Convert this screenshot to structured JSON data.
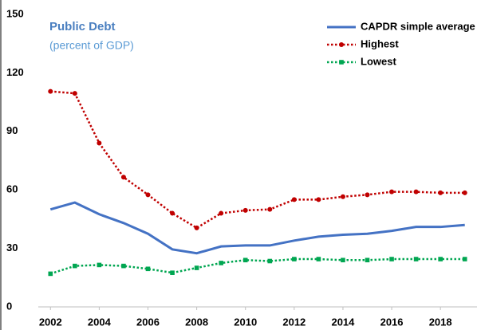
{
  "chart_data": {
    "type": "line",
    "title": "Public Debt",
    "subtitle": "(percent of GDP)",
    "x": [
      2002,
      2003,
      2004,
      2005,
      2006,
      2007,
      2008,
      2009,
      2010,
      2011,
      2012,
      2013,
      2014,
      2015,
      2016,
      2017,
      2018,
      2019
    ],
    "xlim": [
      2001.5,
      2019.5
    ],
    "xticks": [
      2002,
      2004,
      2006,
      2008,
      2010,
      2012,
      2014,
      2016,
      2018
    ],
    "ylim": [
      0,
      150
    ],
    "yticks": [
      0,
      30,
      60,
      90,
      120,
      150
    ],
    "grid": false,
    "legend": "upper right",
    "series": [
      {
        "name": "CAPDR simple average",
        "color": "#4472c4",
        "linestyle": "solid",
        "marker": "none",
        "values": [
          50,
          53.5,
          47.5,
          43,
          37.5,
          29.5,
          27.5,
          31,
          31.5,
          31.5,
          34,
          36,
          37,
          37.5,
          39,
          41,
          41,
          42
        ]
      },
      {
        "name": "Highest",
        "color": "#c00000",
        "linestyle": "dotted",
        "marker": "circle",
        "values": [
          110.5,
          109.5,
          84,
          66.5,
          57.5,
          48,
          40.5,
          48,
          49.5,
          50,
          55,
          55,
          56.5,
          57.5,
          59,
          59,
          58.5,
          58.5
        ]
      },
      {
        "name": "Lowest",
        "color": "#00a651",
        "linestyle": "dotted",
        "marker": "square",
        "values": [
          17,
          21,
          21.5,
          21,
          19.5,
          17.5,
          20,
          22.5,
          24,
          23.5,
          24.5,
          24.5,
          24,
          24,
          24.5,
          24.5,
          24.5,
          24.5
        ]
      }
    ]
  }
}
